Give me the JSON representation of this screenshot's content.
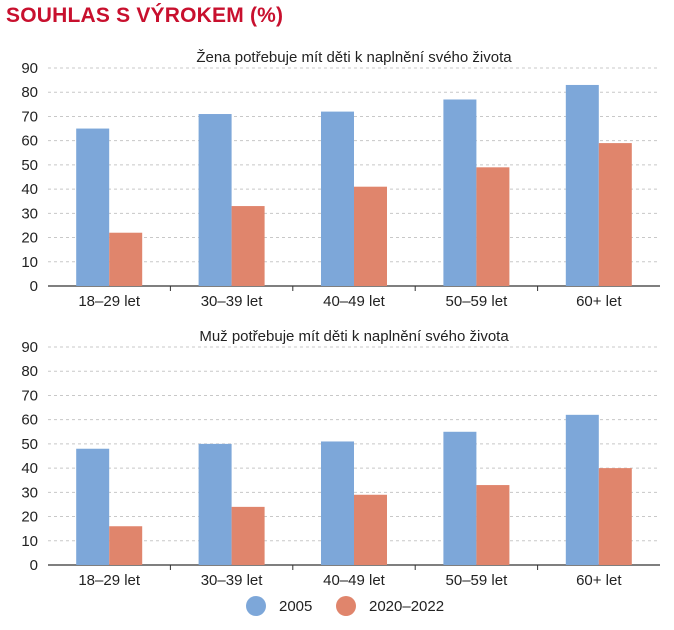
{
  "title": "SOUHLAS S VÝROKEM (%)",
  "colors": {
    "series_2005": "#7da7d9",
    "series_2020": "#e0856c",
    "title": "#c8102e",
    "grid": "#c8c8c8"
  },
  "legend": [
    {
      "label": "2005",
      "color": "#7da7d9"
    },
    {
      "label": "2020–2022",
      "color": "#e0856c"
    }
  ],
  "chart_data": [
    {
      "type": "bar",
      "title": "Žena potřebuje mít děti k naplnění svého života",
      "categories": [
        "18–29 let",
        "30–39 let",
        "40–49 let",
        "50–59 let",
        "60+ let"
      ],
      "yticks": [
        "0",
        "10",
        "20",
        "30",
        "40",
        "50",
        "60",
        "70",
        "80",
        "90"
      ],
      "ylim": [
        0,
        90
      ],
      "series": [
        {
          "name": "2005",
          "values": [
            65,
            71,
            72,
            77,
            83
          ]
        },
        {
          "name": "2020–2022",
          "values": [
            22,
            33,
            41,
            49,
            59
          ]
        }
      ],
      "xlabel": "",
      "ylabel": ""
    },
    {
      "type": "bar",
      "title": "Muž potřebuje mít děti k naplnění svého života",
      "categories": [
        "18–29 let",
        "30–39 let",
        "40–49 let",
        "50–59 let",
        "60+ let"
      ],
      "yticks": [
        "0",
        "10",
        "20",
        "30",
        "40",
        "50",
        "60",
        "70",
        "80",
        "90"
      ],
      "ylim": [
        0,
        90
      ],
      "series": [
        {
          "name": "2005",
          "values": [
            48,
            50,
            51,
            55,
            62
          ]
        },
        {
          "name": "2020–2022",
          "values": [
            16,
            24,
            29,
            33,
            40
          ]
        }
      ],
      "xlabel": "",
      "ylabel": ""
    }
  ]
}
